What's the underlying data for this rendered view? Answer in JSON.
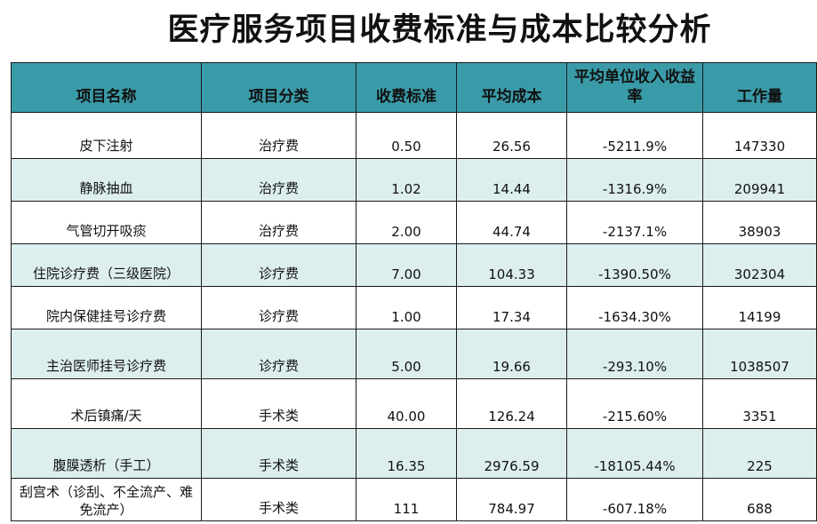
{
  "title": "医疗服务项目收费标准与成本比较分析",
  "headers": [
    "项目名称",
    "项目分类",
    "收费标准",
    "平均成本",
    "平均单位收入收益率",
    "工作量"
  ],
  "rows": [
    {
      "name": "皮下注射",
      "category": "治疗费",
      "fee": "0.50",
      "cost": "26.56",
      "ratio": "-5211.9%",
      "workload": "147330"
    },
    {
      "name": "静脉抽血",
      "category": "治疗费",
      "fee": "1.02",
      "cost": "14.44",
      "ratio": "-1316.9%",
      "workload": "209941"
    },
    {
      "name": "气管切开吸痰",
      "category": "治疗费",
      "fee": "2.00",
      "cost": "44.74",
      "ratio": "-2137.1%",
      "workload": "38903"
    },
    {
      "name": "住院诊疗费（三级医院）",
      "category": "诊疗费",
      "fee": "7.00",
      "cost": "104.33",
      "ratio": "-1390.50%",
      "workload": "302304"
    },
    {
      "name": "院内保健挂号诊疗费",
      "category": "诊疗费",
      "fee": "1.00",
      "cost": "17.34",
      "ratio": "-1634.30%",
      "workload": "14199"
    },
    {
      "name": "主治医师挂号诊疗费",
      "category": "诊疗费",
      "fee": "5.00",
      "cost": "19.66",
      "ratio": "-293.10%",
      "workload": "1038507"
    },
    {
      "name": "术后镇痛/天",
      "category": "手术类",
      "fee": "40.00",
      "cost": "126.24",
      "ratio": "-215.60%",
      "workload": "3351"
    },
    {
      "name": "腹膜透析（手工）",
      "category": "手术类",
      "fee": "16.35",
      "cost": "2976.59",
      "ratio": "-18105.44%",
      "workload": "225"
    },
    {
      "name": "刮宫术（诊刮、不全流产、难免流产）",
      "category": "手术类",
      "fee": "111",
      "cost": "784.97",
      "ratio": "-607.18%",
      "workload": "688"
    }
  ]
}
